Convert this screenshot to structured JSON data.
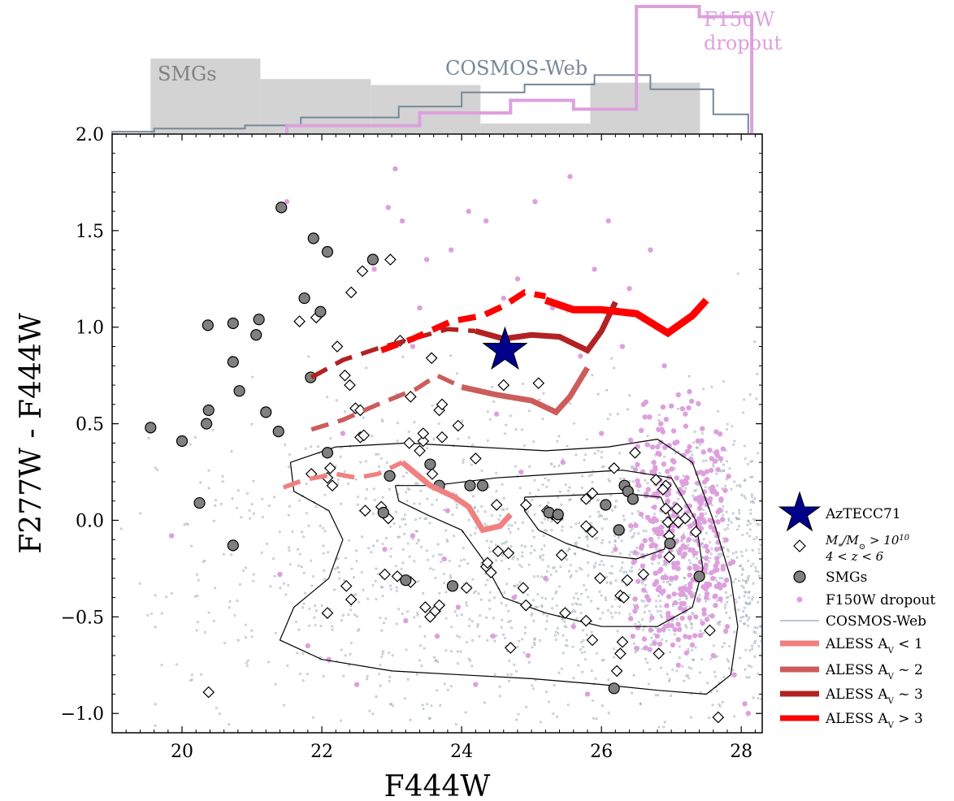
{
  "chart_data": {
    "type": "scatter",
    "xlabel": "F444W",
    "ylabel": "F277W - F444W",
    "xlim": [
      19.0,
      28.3
    ],
    "ylim": [
      -1.1,
      2.0
    ],
    "xticks": [
      20,
      22,
      24,
      26,
      28
    ],
    "yticks": [
      -1.0,
      -0.5,
      0.0,
      0.5,
      1.0,
      1.5,
      2.0
    ],
    "xtick_labels": [
      "20",
      "22",
      "24",
      "26",
      "28"
    ],
    "ytick_labels": [
      "−1.0",
      "−0.5",
      "0.0",
      "0.5",
      "1.0",
      "1.5",
      "2.0"
    ],
    "grid": false,
    "legend_position": "right",
    "colors": {
      "smg_fill": "#808080",
      "dropout": "#dda0dd",
      "cosmos": "#778899",
      "aless_lt1": "#f08080",
      "aless_2": "#cd5c5c",
      "aless_3": "#b22222",
      "aless_gt3": "#ff0000",
      "aztecc": "#00008b"
    },
    "aztecc71": {
      "x": 24.62,
      "y": 0.88
    },
    "smgs": [
      [
        19.55,
        0.48
      ],
      [
        20.0,
        0.41
      ],
      [
        20.25,
        0.09
      ],
      [
        20.35,
        0.5
      ],
      [
        20.38,
        0.57
      ],
      [
        20.37,
        1.01
      ],
      [
        20.73,
        1.02
      ],
      [
        20.73,
        0.82
      ],
      [
        20.82,
        0.67
      ],
      [
        20.73,
        -0.13
      ],
      [
        21.1,
        1.04
      ],
      [
        21.06,
        0.96
      ],
      [
        21.2,
        0.56
      ],
      [
        21.38,
        0.46
      ],
      [
        21.42,
        1.62
      ],
      [
        21.75,
        1.15
      ],
      [
        21.84,
        0.74
      ],
      [
        21.88,
        1.46
      ],
      [
        21.98,
        1.08
      ],
      [
        22.08,
        1.39
      ],
      [
        22.08,
        0.35
      ],
      [
        22.73,
        1.35
      ],
      [
        22.88,
        0.04
      ],
      [
        22.97,
        0.23
      ],
      [
        23.2,
        -0.31
      ],
      [
        23.55,
        0.29
      ],
      [
        23.68,
        0.18
      ],
      [
        24.12,
        0.18
      ],
      [
        24.3,
        0.18
      ],
      [
        25.25,
        0.04
      ],
      [
        25.38,
        0.03
      ],
      [
        23.87,
        -0.34
      ],
      [
        26.06,
        0.08
      ],
      [
        26.25,
        -0.05
      ],
      [
        26.33,
        0.18
      ],
      [
        26.38,
        0.15
      ],
      [
        26.45,
        0.11
      ],
      [
        26.18,
        -0.87
      ],
      [
        26.98,
        -0.12
      ],
      [
        27.4,
        -0.29
      ]
    ],
    "massive_galaxies": [
      [
        20.38,
        -0.89
      ],
      [
        21.68,
        1.03
      ],
      [
        21.92,
        1.05
      ],
      [
        22.58,
        1.29
      ],
      [
        22.98,
        1.35
      ],
      [
        22.42,
        1.18
      ],
      [
        22.22,
        0.9
      ],
      [
        22.33,
        0.75
      ],
      [
        22.4,
        0.7
      ],
      [
        22.48,
        0.58
      ],
      [
        22.55,
        0.57
      ],
      [
        22.55,
        0.43
      ],
      [
        22.6,
        0.44
      ],
      [
        22.62,
        0.05
      ],
      [
        22.08,
        0.22
      ],
      [
        22.12,
        0.27
      ],
      [
        22.15,
        0.18
      ],
      [
        21.85,
        0.24
      ],
      [
        22.35,
        -0.34
      ],
      [
        22.42,
        -0.41
      ],
      [
        22.08,
        -0.48
      ],
      [
        22.85,
        0.07
      ],
      [
        22.9,
        -0.28
      ],
      [
        22.95,
        0.01
      ],
      [
        23.08,
        -0.29
      ],
      [
        23.12,
        0.93
      ],
      [
        23.25,
        0.4
      ],
      [
        23.27,
        0.64
      ],
      [
        23.4,
        0.36
      ],
      [
        23.45,
        0.41
      ],
      [
        23.45,
        0.45
      ],
      [
        23.27,
        -0.32
      ],
      [
        23.48,
        -0.45
      ],
      [
        23.57,
        0.84
      ],
      [
        23.58,
        0.24
      ],
      [
        23.62,
        -0.47
      ],
      [
        23.68,
        -0.44
      ],
      [
        23.68,
        0.57
      ],
      [
        23.72,
        0.6
      ],
      [
        23.72,
        0.43
      ],
      [
        23.55,
        -0.5
      ],
      [
        23.95,
        0.49
      ],
      [
        24.07,
        -0.35
      ],
      [
        24.2,
        0.32
      ],
      [
        24.35,
        -0.24
      ],
      [
        24.37,
        -0.22
      ],
      [
        24.42,
        -0.27
      ],
      [
        24.5,
        0.08
      ],
      [
        24.52,
        -0.16
      ],
      [
        24.6,
        0.7
      ],
      [
        24.67,
        -0.17
      ],
      [
        24.7,
        -0.66
      ],
      [
        24.92,
        0.08
      ],
      [
        24.88,
        -0.35
      ],
      [
        24.92,
        -0.44
      ],
      [
        25.1,
        0.71
      ],
      [
        25.22,
        0.05
      ],
      [
        25.3,
        0.03
      ],
      [
        25.37,
        0.01
      ],
      [
        25.43,
        -0.18
      ],
      [
        25.48,
        -0.48
      ],
      [
        25.78,
        -0.03
      ],
      [
        25.78,
        -0.52
      ],
      [
        25.87,
        -0.06
      ],
      [
        25.78,
        0.11
      ],
      [
        25.87,
        0.14
      ],
      [
        25.87,
        -0.62
      ],
      [
        25.98,
        -0.3
      ],
      [
        26.18,
        0.27
      ],
      [
        26.22,
        -0.78
      ],
      [
        26.27,
        -0.39
      ],
      [
        26.27,
        -0.69
      ],
      [
        26.3,
        -0.63
      ],
      [
        26.32,
        -0.4
      ],
      [
        26.37,
        -0.31
      ],
      [
        26.48,
        0.35
      ],
      [
        26.6,
        -0.28
      ],
      [
        26.78,
        0.21
      ],
      [
        26.82,
        -0.69
      ],
      [
        26.92,
        0.18
      ],
      [
        26.88,
        0.16
      ],
      [
        26.92,
        0.06
      ],
      [
        26.95,
        -0.01
      ],
      [
        26.97,
        -0.08
      ],
      [
        26.97,
        -0.19
      ],
      [
        27.08,
        0.06
      ],
      [
        27.1,
        -0.01
      ],
      [
        27.2,
        0.01
      ],
      [
        27.35,
        -0.06
      ],
      [
        27.55,
        -0.57
      ],
      [
        27.67,
        -1.02
      ]
    ],
    "dropout_points": [
      [
        19.85,
        -0.08
      ],
      [
        21.4,
        -0.28
      ],
      [
        21.5,
        1.65
      ],
      [
        21.8,
        -0.65
      ],
      [
        22.1,
        -0.72
      ],
      [
        22.3,
        0.45
      ],
      [
        22.5,
        -0.85
      ],
      [
        22.75,
        1.3
      ],
      [
        22.9,
        -0.15
      ],
      [
        22.95,
        1.62
      ],
      [
        23.05,
        1.82
      ],
      [
        23.15,
        1.55
      ],
      [
        23.2,
        -0.52
      ],
      [
        23.3,
        0.9
      ],
      [
        23.3,
        -0.08
      ],
      [
        23.4,
        1.1
      ],
      [
        23.5,
        1.35
      ],
      [
        23.65,
        -0.6
      ],
      [
        23.75,
        -0.2
      ],
      [
        23.8,
        0.05
      ],
      [
        23.85,
        1.4
      ],
      [
        23.95,
        -0.45
      ],
      [
        24.1,
        1.6
      ],
      [
        24.2,
        -0.85
      ],
      [
        24.35,
        1.55
      ],
      [
        24.45,
        -0.6
      ],
      [
        24.5,
        0.55
      ],
      [
        24.6,
        1.15
      ],
      [
        24.75,
        -0.4
      ],
      [
        24.8,
        1.25
      ],
      [
        24.85,
        0.25
      ],
      [
        24.95,
        -0.7
      ],
      [
        25.05,
        1.65
      ],
      [
        25.2,
        -0.3
      ],
      [
        25.3,
        1.1
      ],
      [
        25.45,
        0.3
      ],
      [
        25.55,
        1.78
      ],
      [
        25.6,
        -0.55
      ],
      [
        25.7,
        0.85
      ],
      [
        25.8,
        -0.9
      ],
      [
        25.9,
        1.3
      ],
      [
        26.0,
        0.45
      ],
      [
        26.1,
        1.55
      ],
      [
        26.2,
        -0.15
      ],
      [
        26.3,
        0.9
      ],
      [
        26.4,
        1.2
      ],
      [
        26.5,
        -0.45
      ],
      [
        26.6,
        0.6
      ],
      [
        26.7,
        1.4
      ],
      [
        26.75,
        0.3
      ],
      [
        26.8,
        -0.6
      ],
      [
        26.85,
        0.5
      ],
      [
        26.9,
        0.8
      ],
      [
        26.95,
        0.1
      ],
      [
        27.0,
        -0.3
      ],
      [
        27.05,
        0.4
      ],
      [
        27.1,
        0.65
      ],
      [
        27.1,
        -0.75
      ],
      [
        27.15,
        0.2
      ],
      [
        27.2,
        0.55
      ],
      [
        27.25,
        -0.1
      ],
      [
        27.3,
        0.3
      ],
      [
        27.35,
        -0.5
      ],
      [
        27.4,
        0.1
      ],
      [
        27.45,
        -0.25
      ],
      [
        27.5,
        -0.4
      ],
      [
        27.55,
        0.0
      ],
      [
        27.6,
        -0.7
      ],
      [
        27.65,
        -0.15
      ],
      [
        27.7,
        -0.35
      ],
      [
        27.8,
        -0.55
      ],
      [
        27.9,
        -0.8
      ],
      [
        28.05,
        -0.95
      ],
      [
        28.1,
        -1.0
      ]
    ],
    "cosmos_contours": [
      [
        [
          21.55,
          0.3
        ],
        [
          22.2,
          0.38
        ],
        [
          23.2,
          0.4
        ],
        [
          24.2,
          0.38
        ],
        [
          25.2,
          0.36
        ],
        [
          26.1,
          0.38
        ],
        [
          26.8,
          0.42
        ],
        [
          27.3,
          0.3
        ],
        [
          27.6,
          0.0
        ],
        [
          27.85,
          -0.3
        ],
        [
          27.95,
          -0.55
        ],
        [
          27.85,
          -0.8
        ],
        [
          27.5,
          -0.9
        ],
        [
          26.8,
          -0.88
        ],
        [
          26.0,
          -0.85
        ],
        [
          25.0,
          -0.82
        ],
        [
          24.0,
          -0.8
        ],
        [
          23.0,
          -0.78
        ],
        [
          22.0,
          -0.72
        ],
        [
          21.4,
          -0.62
        ],
        [
          21.6,
          -0.45
        ],
        [
          22.1,
          -0.3
        ],
        [
          22.3,
          -0.1
        ],
        [
          22.1,
          0.05
        ],
        [
          21.6,
          0.15
        ],
        [
          21.55,
          0.3
        ]
      ],
      [
        [
          23.05,
          0.18
        ],
        [
          23.6,
          0.18
        ],
        [
          24.5,
          0.22
        ],
        [
          25.4,
          0.24
        ],
        [
          26.3,
          0.26
        ],
        [
          27.0,
          0.22
        ],
        [
          27.35,
          0.0
        ],
        [
          27.45,
          -0.25
        ],
        [
          27.3,
          -0.45
        ],
        [
          26.8,
          -0.55
        ],
        [
          26.0,
          -0.55
        ],
        [
          25.2,
          -0.48
        ],
        [
          24.6,
          -0.4
        ],
        [
          24.3,
          -0.2
        ],
        [
          24.0,
          -0.05
        ],
        [
          23.5,
          0.03
        ],
        [
          23.1,
          0.1
        ],
        [
          23.05,
          0.18
        ]
      ],
      [
        [
          24.9,
          0.12
        ],
        [
          25.6,
          0.13
        ],
        [
          26.3,
          0.14
        ],
        [
          26.85,
          0.12
        ],
        [
          27.0,
          0.0
        ],
        [
          26.9,
          -0.15
        ],
        [
          26.5,
          -0.2
        ],
        [
          26.0,
          -0.18
        ],
        [
          25.5,
          -0.12
        ],
        [
          25.1,
          -0.05
        ],
        [
          24.9,
          0.05
        ],
        [
          24.9,
          0.12
        ]
      ]
    ],
    "aless_tracks": [
      {
        "name": "ALESS A<sub>V</sub> &lt; 1",
        "color": "#f08080",
        "dashed": [
          [
            21.45,
            0.17
          ],
          [
            21.75,
            0.21
          ],
          [
            22.2,
            0.24
          ],
          [
            22.5,
            0.22
          ],
          [
            22.8,
            0.24
          ],
          [
            23.15,
            0.3
          ]
        ],
        "solid": [
          [
            23.15,
            0.3
          ],
          [
            23.55,
            0.18
          ],
          [
            23.9,
            0.12
          ],
          [
            24.1,
            0.07
          ],
          [
            24.3,
            -0.05
          ],
          [
            24.55,
            -0.03
          ],
          [
            24.7,
            0.03
          ]
        ]
      },
      {
        "name": "ALESS A<sub>V</sub> ~ 2",
        "color": "#cd5c5c",
        "dashed": [
          [
            21.85,
            0.47
          ],
          [
            22.3,
            0.52
          ],
          [
            22.8,
            0.6
          ],
          [
            23.35,
            0.68
          ],
          [
            23.65,
            0.75
          ],
          [
            24.0,
            0.69
          ]
        ],
        "solid": [
          [
            24.0,
            0.69
          ],
          [
            24.5,
            0.65
          ],
          [
            25.0,
            0.62
          ],
          [
            25.35,
            0.56
          ],
          [
            25.55,
            0.64
          ],
          [
            25.8,
            0.79
          ]
        ]
      },
      {
        "name": "ALESS A<sub>V</sub> ~ 3",
        "color": "#b22222",
        "dashed": [
          [
            21.85,
            0.74
          ],
          [
            22.3,
            0.83
          ],
          [
            22.8,
            0.89
          ],
          [
            23.3,
            0.94
          ],
          [
            23.8,
            0.99
          ],
          [
            24.2,
            0.98
          ]
        ],
        "solid": [
          [
            24.2,
            0.98
          ],
          [
            24.6,
            0.94
          ],
          [
            25.0,
            0.96
          ],
          [
            25.4,
            0.95
          ],
          [
            25.8,
            0.88
          ],
          [
            26.0,
            0.98
          ],
          [
            26.2,
            1.13
          ]
        ]
      },
      {
        "name": "ALESS A<sub>V</sub> &gt; 3",
        "color": "#ff0000",
        "dashed": [
          [
            22.85,
            0.88
          ],
          [
            23.3,
            0.94
          ],
          [
            23.85,
            1.03
          ],
          [
            24.3,
            1.06
          ],
          [
            24.6,
            1.11
          ],
          [
            24.9,
            1.18
          ],
          [
            25.2,
            1.16
          ]
        ],
        "solid": [
          [
            25.2,
            1.14
          ],
          [
            25.6,
            1.09
          ],
          [
            26.0,
            1.09
          ],
          [
            26.5,
            1.07
          ],
          [
            26.95,
            0.97
          ],
          [
            27.3,
            1.06
          ],
          [
            27.5,
            1.14
          ]
        ]
      }
    ],
    "histograms": {
      "labels": {
        "smgs": "SMGs",
        "cosmos": "COSMOS-Web",
        "dropout_line1": "F150W",
        "dropout_line2": "dropout"
      },
      "edges": [
        19.0,
        19.55,
        21.12,
        22.7,
        24.27,
        25.84,
        27.41,
        28.3
      ],
      "smg_heights": [
        0.0,
        0.62,
        0.45,
        0.4,
        0.08,
        0.42,
        0.0
      ],
      "cosmos_edges": [
        19.0,
        19.6,
        20.9,
        21.7,
        23.1,
        24.0,
        24.9,
        25.9,
        26.7,
        27.6,
        28.1
      ],
      "cosmos_heights": [
        0.02,
        0.06,
        0.1,
        0.2,
        0.34,
        0.52,
        0.62,
        0.74,
        0.56,
        0.24
      ],
      "dropout_edges": [
        21.5,
        23.4,
        24.7,
        25.6,
        26.5,
        27.4,
        28.15
      ],
      "dropout_heights": [
        0.06,
        0.16,
        0.26,
        0.19,
        1.0,
        0.92
      ]
    },
    "legend": [
      {
        "key": "aztecc",
        "label": "AzTECC71"
      },
      {
        "key": "massive",
        "label": "M<tspan baseline-shift=\"sub\" font-size=\"10\">*</tspan>/M<tspan baseline-shift=\"sub\" font-size=\"10\">⊙</tspan> &gt; 10<tspan baseline-shift=\"super\" font-size=\"10\">10</tspan>",
        "label2": "4 &lt; z &lt; 6"
      },
      {
        "key": "smgs",
        "label": "SMGs"
      },
      {
        "key": "dropout",
        "label": "F150W dropout"
      },
      {
        "key": "cosmos",
        "label": "COSMOS-Web"
      },
      {
        "key": "aless0",
        "label": "ALESS A<tspan baseline-shift=\"sub\" font-size=\"10\">V</tspan> &lt; 1"
      },
      {
        "key": "aless1",
        "label": "ALESS A<tspan baseline-shift=\"sub\" font-size=\"10\">V</tspan> ~ 2"
      },
      {
        "key": "aless2",
        "label": "ALESS A<tspan baseline-shift=\"sub\" font-size=\"10\">V</tspan> ~ 3"
      },
      {
        "key": "aless3",
        "label": "ALESS A<tspan baseline-shift=\"sub\" font-size=\"10\">V</tspan> &gt; 3"
      }
    ]
  }
}
